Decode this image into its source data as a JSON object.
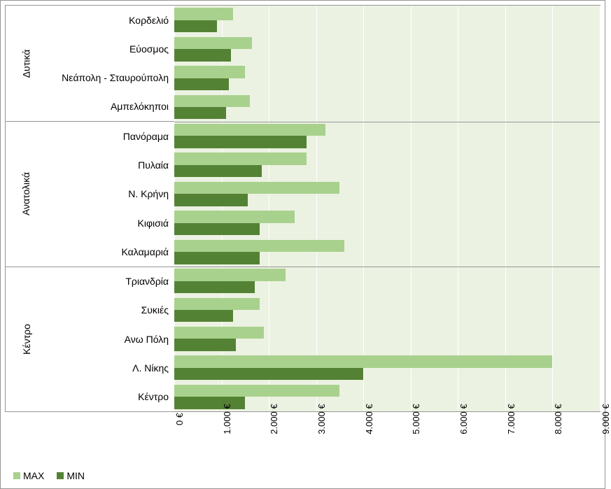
{
  "chart": {
    "type": "bar",
    "orientation": "horizontal",
    "background_color": "#ffffff",
    "plot_background_color": "#ecf2e2",
    "grid_color": "#ffffff",
    "border_color": "#969696",
    "label_fontsize": 14,
    "tick_fontsize": 13,
    "x": {
      "min": 0,
      "max": 9000,
      "tick_step": 1000,
      "tick_format_suffix": " €",
      "ticks": [
        "0 €",
        "1.000 €",
        "2.000 €",
        "3.000 €",
        "4.000 €",
        "5.000 €",
        "6.000 €",
        "7.000 €",
        "8.000 €",
        "9.000 €"
      ]
    },
    "series": [
      {
        "key": "max",
        "label": "MAX",
        "color": "#a9d18e"
      },
      {
        "key": "min",
        "label": "MIN",
        "color": "#548235"
      }
    ],
    "groups": [
      {
        "label": "Δυτικά",
        "items": [
          {
            "label": "Κορδελιό",
            "max": 1250,
            "min": 900
          },
          {
            "label": "Εύοσμος",
            "max": 1650,
            "min": 1200
          },
          {
            "label": "Νεάπολη - Σταυρούπολη",
            "max": 1500,
            "min": 1150
          },
          {
            "label": "Αμπελόκηποι",
            "max": 1600,
            "min": 1100
          }
        ]
      },
      {
        "label": "Ανατολικά",
        "items": [
          {
            "label": "Πανόραμα",
            "max": 3200,
            "min": 2800
          },
          {
            "label": "Πυλαία",
            "max": 2800,
            "min": 1850
          },
          {
            "label": "Ν. Κρήνη",
            "max": 3500,
            "min": 1550
          },
          {
            "label": "Κιφισιά",
            "max": 2550,
            "min": 1800
          },
          {
            "label": "Καλαμαριά",
            "max": 3600,
            "min": 1800
          }
        ]
      },
      {
        "label": "Κέντρο",
        "items": [
          {
            "label": "Τριανδρία",
            "max": 2350,
            "min": 1700
          },
          {
            "label": "Συκιές",
            "max": 1800,
            "min": 1250
          },
          {
            "label": "Ανω Πόλη",
            "max": 1900,
            "min": 1300
          },
          {
            "label": "Λ. Νίκης",
            "max": 8000,
            "min": 4000
          },
          {
            "label": "Κέντρο",
            "max": 3500,
            "min": 1500
          }
        ]
      }
    ],
    "legend": {
      "position": "bottom-left",
      "items": [
        "MAX",
        "MIN"
      ]
    }
  }
}
